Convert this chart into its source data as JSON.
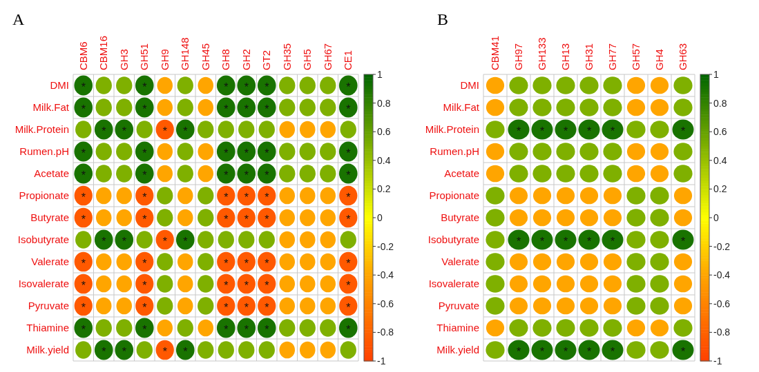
{
  "chart_data": [
    {
      "type": "heatmap",
      "title": "A",
      "categories": [
        "CBM6",
        "CBM16",
        "GH3",
        "GH51",
        "GH9",
        "GH148",
        "GH45",
        "GH8",
        "GH2",
        "GT2",
        "GH35",
        "GH5",
        "GH67",
        "CE1"
      ],
      "y_categories": [
        "DMI",
        "Milk.Fat",
        "Milk.Protein",
        "Rumen.pH",
        "Acetate",
        "Propionate",
        "Butyrate",
        "Isobutyrate",
        "Valerate",
        "Isovalerate",
        "Pyruvate",
        "Thiamine",
        "Milk.yield"
      ],
      "cells": [
        [
          0.9,
          0.5,
          0.5,
          0.9,
          -0.4,
          0.5,
          -0.4,
          0.9,
          0.9,
          0.9,
          0.5,
          0.5,
          0.5,
          0.9
        ],
        [
          0.9,
          0.5,
          0.5,
          0.9,
          -0.4,
          0.5,
          -0.4,
          0.9,
          0.9,
          0.9,
          0.5,
          0.5,
          0.5,
          0.9
        ],
        [
          0.5,
          0.9,
          0.9,
          0.5,
          -0.85,
          0.9,
          0.5,
          0.5,
          0.5,
          0.5,
          -0.4,
          -0.4,
          -0.4,
          0.5
        ],
        [
          0.9,
          0.5,
          0.5,
          0.9,
          -0.4,
          0.5,
          -0.4,
          0.9,
          0.9,
          0.9,
          0.5,
          0.5,
          0.5,
          0.9
        ],
        [
          0.9,
          0.5,
          0.5,
          0.9,
          -0.4,
          0.5,
          -0.4,
          0.9,
          0.9,
          0.9,
          0.5,
          0.5,
          0.5,
          0.9
        ],
        [
          -0.85,
          -0.4,
          -0.4,
          -0.85,
          0.5,
          -0.4,
          0.5,
          -0.85,
          -0.85,
          -0.85,
          -0.4,
          -0.4,
          -0.4,
          -0.85
        ],
        [
          -0.85,
          -0.4,
          -0.4,
          -0.85,
          0.5,
          -0.4,
          0.5,
          -0.85,
          -0.85,
          -0.85,
          -0.4,
          -0.4,
          -0.4,
          -0.85
        ],
        [
          0.5,
          0.9,
          0.9,
          0.5,
          -0.85,
          0.9,
          0.5,
          0.5,
          0.5,
          0.5,
          -0.4,
          -0.4,
          -0.4,
          0.5
        ],
        [
          -0.85,
          -0.4,
          -0.4,
          -0.85,
          0.5,
          -0.4,
          0.5,
          -0.85,
          -0.85,
          -0.85,
          -0.4,
          -0.4,
          -0.4,
          -0.85
        ],
        [
          -0.85,
          -0.4,
          -0.4,
          -0.85,
          0.5,
          -0.4,
          0.5,
          -0.85,
          -0.85,
          -0.85,
          -0.4,
          -0.4,
          -0.4,
          -0.85
        ],
        [
          -0.85,
          -0.4,
          -0.4,
          -0.85,
          0.5,
          -0.4,
          0.5,
          -0.85,
          -0.85,
          -0.85,
          -0.4,
          -0.4,
          -0.4,
          -0.85
        ],
        [
          0.9,
          0.5,
          0.5,
          0.9,
          -0.4,
          0.5,
          -0.4,
          0.9,
          0.9,
          0.9,
          0.5,
          0.5,
          0.5,
          0.9
        ],
        [
          0.5,
          0.9,
          0.9,
          0.5,
          -0.85,
          0.9,
          0.5,
          0.5,
          0.5,
          0.5,
          -0.4,
          -0.4,
          -0.4,
          0.5
        ]
      ],
      "cell_labels": [
        [
          "*",
          null,
          null,
          "*",
          null,
          null,
          null,
          "*",
          "*",
          "*",
          null,
          null,
          null,
          "*"
        ],
        [
          "*",
          null,
          null,
          "*",
          null,
          null,
          null,
          "*",
          "*",
          "*",
          null,
          null,
          null,
          "*"
        ],
        [
          null,
          "*",
          "*",
          null,
          "*",
          "*",
          null,
          null,
          null,
          null,
          null,
          null,
          null,
          null
        ],
        [
          "*",
          null,
          null,
          "*",
          null,
          null,
          null,
          "*",
          "*",
          "*",
          null,
          null,
          null,
          "*"
        ],
        [
          "*",
          null,
          null,
          "*",
          null,
          null,
          null,
          "*",
          "*",
          "*",
          null,
          null,
          null,
          "*"
        ],
        [
          "*",
          null,
          null,
          "*",
          null,
          null,
          null,
          "*",
          "*",
          "*",
          null,
          null,
          null,
          "*"
        ],
        [
          "*",
          null,
          null,
          "*",
          null,
          null,
          null,
          "*",
          "*",
          "*",
          null,
          null,
          null,
          "*"
        ],
        [
          null,
          "*",
          "*",
          null,
          "*",
          "*",
          null,
          null,
          null,
          null,
          null,
          null,
          null,
          null
        ],
        [
          "*",
          null,
          null,
          "*",
          null,
          null,
          null,
          "*",
          "*",
          "*",
          null,
          null,
          null,
          "*"
        ],
        [
          "*",
          null,
          null,
          "*",
          null,
          null,
          null,
          "*",
          "*",
          "*",
          null,
          null,
          null,
          "*"
        ],
        [
          "*",
          null,
          null,
          "*",
          null,
          null,
          null,
          "*",
          "*",
          "*",
          null,
          null,
          null,
          "*"
        ],
        [
          "*",
          null,
          null,
          "*",
          null,
          null,
          null,
          "*",
          "*",
          "*",
          null,
          null,
          null,
          "*"
        ],
        [
          null,
          "*",
          "*",
          null,
          "*",
          "*",
          null,
          null,
          null,
          null,
          null,
          null,
          null,
          null
        ]
      ],
      "clim": [
        -1,
        1
      ],
      "cticks": [
        -1,
        -0.8,
        -0.6,
        -0.4,
        -0.2,
        0,
        0.2,
        0.4,
        0.6,
        0.8,
        1
      ]
    },
    {
      "type": "heatmap",
      "title": "B",
      "categories": [
        "CBM41",
        "GH97",
        "GH133",
        "GH13",
        "GH31",
        "GH77",
        "GH57",
        "GH4",
        "GH63"
      ],
      "y_categories": [
        "DMI",
        "Milk.Fat",
        "Milk.Protein",
        "Rumen.pH",
        "Acetate",
        "Propionate",
        "Butyrate",
        "Isobutyrate",
        "Valerate",
        "Isovalerate",
        "Pyruvate",
        "Thiamine",
        "Milk.yield"
      ],
      "cells": [
        [
          -0.4,
          0.5,
          0.5,
          0.5,
          0.5,
          0.5,
          -0.4,
          -0.4,
          0.5
        ],
        [
          -0.4,
          0.5,
          0.5,
          0.5,
          0.5,
          0.5,
          -0.4,
          -0.4,
          0.5
        ],
        [
          0.5,
          0.9,
          0.9,
          0.9,
          0.9,
          0.9,
          0.5,
          0.5,
          0.9
        ],
        [
          -0.4,
          0.5,
          0.5,
          0.5,
          0.5,
          0.5,
          -0.4,
          -0.4,
          0.5
        ],
        [
          -0.4,
          0.5,
          0.5,
          0.5,
          0.5,
          0.5,
          -0.4,
          -0.4,
          0.5
        ],
        [
          0.5,
          -0.4,
          -0.4,
          -0.4,
          -0.4,
          -0.4,
          0.5,
          0.5,
          -0.4
        ],
        [
          0.5,
          -0.4,
          -0.4,
          -0.4,
          -0.4,
          -0.4,
          0.5,
          0.5,
          -0.4
        ],
        [
          0.5,
          0.9,
          0.9,
          0.9,
          0.9,
          0.9,
          0.5,
          0.5,
          0.9
        ],
        [
          0.5,
          -0.4,
          -0.4,
          -0.4,
          -0.4,
          -0.4,
          0.5,
          0.5,
          -0.4
        ],
        [
          0.5,
          -0.4,
          -0.4,
          -0.4,
          -0.4,
          -0.4,
          0.5,
          0.5,
          -0.4
        ],
        [
          0.5,
          -0.4,
          -0.4,
          -0.4,
          -0.4,
          -0.4,
          0.5,
          0.5,
          -0.4
        ],
        [
          -0.4,
          0.5,
          0.5,
          0.5,
          0.5,
          0.5,
          -0.4,
          -0.4,
          0.5
        ],
        [
          0.5,
          0.9,
          0.9,
          0.9,
          0.9,
          0.9,
          0.5,
          0.5,
          0.9
        ]
      ],
      "cell_labels": [
        [
          null,
          null,
          null,
          null,
          null,
          null,
          null,
          null,
          null
        ],
        [
          null,
          null,
          null,
          null,
          null,
          null,
          null,
          null,
          null
        ],
        [
          null,
          "*",
          "*",
          "*",
          "*",
          "*",
          null,
          null,
          "*"
        ],
        [
          null,
          null,
          null,
          null,
          null,
          null,
          null,
          null,
          null
        ],
        [
          null,
          null,
          null,
          null,
          null,
          null,
          null,
          null,
          null
        ],
        [
          null,
          null,
          null,
          null,
          null,
          null,
          null,
          null,
          null
        ],
        [
          null,
          null,
          null,
          null,
          null,
          null,
          null,
          null,
          null
        ],
        [
          null,
          "*",
          "*",
          "*",
          "*",
          "*",
          null,
          null,
          "*"
        ],
        [
          null,
          null,
          null,
          null,
          null,
          null,
          null,
          null,
          null
        ],
        [
          null,
          null,
          null,
          null,
          null,
          null,
          null,
          null,
          null
        ],
        [
          null,
          null,
          null,
          null,
          null,
          null,
          null,
          null,
          null
        ],
        [
          null,
          null,
          null,
          null,
          null,
          null,
          null,
          null,
          null
        ],
        [
          null,
          "*",
          "*",
          "*",
          "*",
          "*",
          null,
          null,
          "*"
        ]
      ],
      "clim": [
        -1,
        1
      ],
      "cticks": [
        -1,
        -0.8,
        -0.6,
        -0.4,
        -0.2,
        0,
        0.2,
        0.4,
        0.6,
        0.8,
        1
      ]
    }
  ]
}
